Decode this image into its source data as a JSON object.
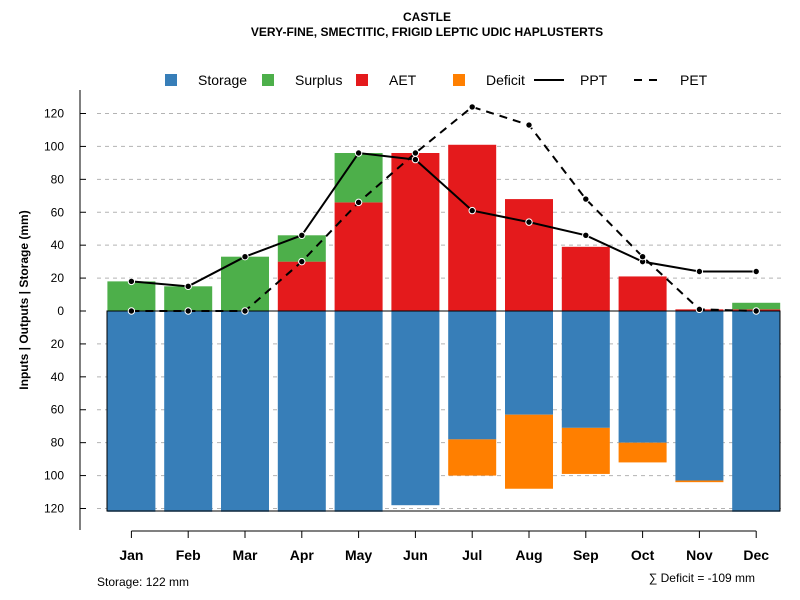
{
  "chart_data": {
    "type": "bar",
    "title": "CASTLE",
    "subtitle": "VERY-FINE, SMECTITIC, FRIGID LEPTIC UDIC HAPLUSTERTS",
    "ylabel": "Inputs | Outputs | Storage    (mm)",
    "ylim": [
      -122,
      128
    ],
    "y_ticks": [
      120,
      100,
      80,
      60,
      40,
      20,
      0,
      -20,
      -40,
      -60,
      -80,
      -100,
      -120
    ],
    "y_tick_labels": [
      "120",
      "100",
      "80",
      "60",
      "40",
      "20",
      "0",
      "20",
      "40",
      "60",
      "80",
      "100",
      "120"
    ],
    "categories": [
      "Jan",
      "Feb",
      "Mar",
      "Apr",
      "May",
      "Jun",
      "Jul",
      "Aug",
      "Sep",
      "Oct",
      "Nov",
      "Dec"
    ],
    "legend": [
      {
        "label": "Storage",
        "kind": "box",
        "color": "#377EB8"
      },
      {
        "label": "Surplus",
        "kind": "box",
        "color": "#4DAF4A"
      },
      {
        "label": "AET",
        "kind": "box",
        "color": "#E41A1C"
      },
      {
        "label": "Deficit",
        "kind": "box",
        "color": "#FF7F00"
      },
      {
        "label": "PPT",
        "kind": "line",
        "color": "#000000"
      },
      {
        "label": "PET",
        "kind": "dash",
        "color": "#000000"
      }
    ],
    "series": [
      {
        "name": "Storage",
        "color": "#377EB8",
        "values": [
          122,
          122,
          122,
          122,
          122,
          118,
          78,
          63,
          71,
          80,
          103,
          122
        ]
      },
      {
        "name": "Deficit",
        "color": "#FF7F00",
        "values": [
          0,
          0,
          0,
          0,
          0,
          0,
          22,
          45,
          28,
          12,
          1,
          0
        ]
      },
      {
        "name": "AET",
        "color": "#E41A1C",
        "values": [
          0,
          0,
          0,
          30,
          66,
          96,
          101,
          68,
          39,
          21,
          1,
          1
        ]
      },
      {
        "name": "Surplus",
        "color": "#4DAF4A",
        "values": [
          18,
          15,
          33,
          16,
          30,
          0,
          0,
          0,
          0,
          0,
          0,
          4
        ]
      },
      {
        "name": "PPT",
        "color": "#000000",
        "values": [
          18,
          15,
          33,
          46,
          96,
          92,
          61,
          54,
          46,
          30,
          24,
          24
        ]
      },
      {
        "name": "PET",
        "color": "#000000",
        "values": [
          0,
          0,
          0,
          30,
          66,
          96,
          124,
          113,
          68,
          33,
          1,
          0
        ]
      }
    ],
    "storage_note": "Storage: 122 mm",
    "deficit_note": "∑ Deficit = -109 mm"
  }
}
